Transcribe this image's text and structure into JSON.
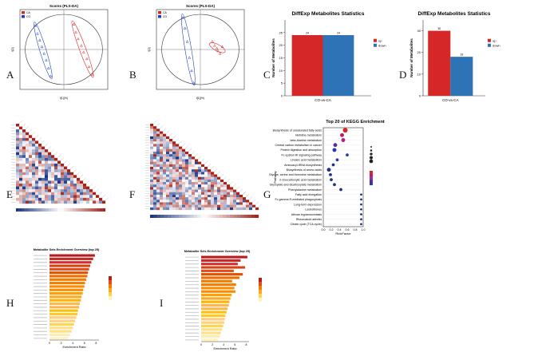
{
  "panel_labels": [
    "A",
    "B",
    "C",
    "D",
    "E",
    "F",
    "G",
    "H",
    "I"
  ],
  "chart_data": [
    {
      "id": "A",
      "type": "scatter",
      "title": "Scores (PLS-DA)",
      "ylabel": "t[2]",
      "xlabel": "t[1](%)",
      "legend": [
        "CA",
        "CO"
      ],
      "colors": {
        "CA": "#d62728",
        "CO": "#1f3fbf"
      },
      "series": [
        {
          "name": "CA",
          "x": [
            0.9,
            1.1,
            1.3,
            1.6,
            1.8,
            2.1,
            2.3,
            2.6
          ],
          "y": [
            1.9,
            1.3,
            0.8,
            0.3,
            -0.2,
            -0.7,
            -1.3,
            -1.9
          ]
        },
        {
          "name": "CO",
          "x": [
            -2.6,
            -2.4,
            -2.2,
            -2.0,
            -1.8,
            -1.6,
            -1.4,
            -1.2
          ],
          "y": [
            1.8,
            1.2,
            0.7,
            0.2,
            -0.3,
            -0.8,
            -1.4,
            -2.0
          ]
        }
      ],
      "xlim": [
        -4,
        4
      ],
      "ylim": [
        -3,
        3
      ]
    },
    {
      "id": "B",
      "type": "scatter",
      "title": "Scores (PLS-DA)",
      "ylabel": "t[2]",
      "xlabel": "t[1](%)",
      "legend": [
        "CA",
        "CO"
      ],
      "colors": {
        "CA": "#d62728",
        "CO": "#1f3fbf"
      },
      "series": [
        {
          "name": "CA",
          "x": [
            1.1,
            1.3,
            1.5,
            1.6,
            1.8,
            2.0
          ],
          "y": [
            0.6,
            0.3,
            0.1,
            -0.1,
            -0.3,
            0.2
          ]
        },
        {
          "name": "CO",
          "x": [
            -1.6,
            -1.4,
            -1.2,
            -1.0,
            -0.8,
            -0.6
          ],
          "y": [
            2.4,
            1.6,
            0.6,
            -0.6,
            -1.6,
            -2.5
          ]
        }
      ],
      "xlim": [
        -4,
        4
      ],
      "ylim": [
        -3,
        3
      ]
    },
    {
      "id": "C",
      "type": "bar",
      "title": "DiffExp Metabolites Statistics",
      "categories": [
        "CO-vs-CA"
      ],
      "series": [
        {
          "name": "up",
          "values": [
            24
          ]
        },
        {
          "name": "down",
          "values": [
            24
          ]
        }
      ],
      "ylabel": "Number of Metabolites",
      "ylim": [
        0,
        30
      ],
      "yticks": [
        0,
        5,
        10,
        15,
        20,
        25
      ]
    },
    {
      "id": "D",
      "type": "bar",
      "title": "DiffExp Metabolites Statistics",
      "categories": [
        "CO-vs-CA"
      ],
      "series": [
        {
          "name": "up",
          "values": [
            30
          ]
        },
        {
          "name": "down",
          "values": [
            18
          ]
        }
      ],
      "ylabel": "Number of Metabolites",
      "ylim": [
        0,
        35
      ],
      "yticks": [
        0,
        10,
        20,
        30
      ]
    },
    {
      "id": "E",
      "type": "heatmap",
      "shape": "lower-triangle",
      "size": 28
    },
    {
      "id": "F",
      "type": "heatmap",
      "shape": "lower-triangle",
      "size": 34
    },
    {
      "id": "G",
      "type": "scatter",
      "title": "Top 20 of KEGG Enrichment",
      "xlabel": "RichFactor",
      "ylabel": "Pathway",
      "categories": [
        "Biosynthesis of unsaturated fatty acids",
        "Histidine metabolism",
        "beta-Alanine metabolism",
        "Central carbon metabolism in cancer",
        "Protein digestion and absorption",
        "Fc epsilon RI signaling pathway",
        "Linoleic acid metabolism",
        "Aminoacyl-tRNA biosynthesis",
        "Biosynthesis of amino acids",
        "Glycine, serine and threonine metabolism",
        "2-Oxocarboxylic acid metabolism",
        "Glyoxylate and dicarboxylate metabolism",
        "Phenylalanine metabolism",
        "Fatty acid elongation",
        "Fc gamma R-mediated phagocytosis",
        "Long-term depression",
        "Leukotrienes",
        "African trypanosomiasis",
        "Rheumatoid arthritis",
        "Citrate cycle (TCA cycle)"
      ],
      "x": [
        0.55,
        0.47,
        0.5,
        0.3,
        0.28,
        0.6,
        0.35,
        0.25,
        0.14,
        0.18,
        0.2,
        0.28,
        0.44,
        0.95,
        0.95,
        0.95,
        0.95,
        0.95,
        0.95,
        0.95
      ],
      "sizes": [
        4,
        3,
        3,
        3,
        3,
        2,
        2,
        2,
        3,
        2,
        2,
        2,
        2,
        1,
        1,
        1,
        1,
        1,
        1,
        1
      ],
      "pvalue_colors": [
        "#d62728",
        "#c2185b",
        "#b71c8a",
        "#5b2a9e",
        "#2a3bb0",
        "#2a3bb0",
        "#2a3bb0",
        "#23308f",
        "#23308f",
        "#23308f",
        "#23308f",
        "#23308f",
        "#23308f",
        "#1f2a80",
        "#1f2a80",
        "#1f2a80",
        "#1f2a80",
        "#1f2a80",
        "#1f2a80",
        "#1f2a80"
      ],
      "xlim": [
        0,
        1
      ],
      "xticks": [
        "0.0",
        "0.2",
        "0.4",
        "0.6",
        "0.8",
        "1.0"
      ]
    },
    {
      "id": "H",
      "type": "bar",
      "orientation": "horizontal",
      "title": "Metabolite Sets Enrichment Overview (top 25)",
      "xlabel": "Enrichment Ratio",
      "values": [
        7.8,
        7.5,
        7.2,
        7.0,
        6.8,
        6.6,
        6.5,
        6.3,
        6.1,
        6.0,
        5.8,
        5.7,
        5.5,
        5.4,
        5.2,
        5.1,
        4.9,
        4.8,
        4.6,
        4.4,
        4.2,
        4.0,
        3.8,
        3.5,
        3.2
      ],
      "colors": [
        "#b71c1c",
        "#c62828",
        "#d32f2f",
        "#d84315",
        "#e64a19",
        "#e65100",
        "#ef6c00",
        "#f57c00",
        "#f57c00",
        "#fb8c00",
        "#fb8c00",
        "#ffa000",
        "#ffa726",
        "#ffb300",
        "#ffb74d",
        "#ffb74d",
        "#ffc107",
        "#ffca28",
        "#ffcc80",
        "#ffd180",
        "#ffd54f",
        "#ffe082",
        "#ffe082",
        "#ffecb3",
        "#fff3c4"
      ],
      "xticks": [
        "0",
        "2",
        "4",
        "6",
        "8"
      ]
    },
    {
      "id": "I",
      "type": "bar",
      "orientation": "horizontal",
      "title": "Metabolite Sets Enrichment Overview (top 25)",
      "xlabel": "Enrichment Ratio",
      "values": [
        8.2,
        7.0,
        6.5,
        7.8,
        5.8,
        7.4,
        6.8,
        5.5,
        6.2,
        5.9,
        6.1,
        5.4,
        5.2,
        5.0,
        4.9,
        4.7,
        4.5,
        4.3,
        4.2,
        4.1,
        3.9,
        3.7,
        3.5,
        3.3,
        3.0
      ],
      "colors": [
        "#b71c1c",
        "#c62828",
        "#d32f2f",
        "#d84315",
        "#e64a19",
        "#e65100",
        "#ef6c00",
        "#f57c00",
        "#f57c00",
        "#fb8c00",
        "#fb8c00",
        "#ffa000",
        "#ffa726",
        "#ffb300",
        "#ffb74d",
        "#ffb74d",
        "#ffc107",
        "#ffca28",
        "#ffcc80",
        "#ffd180",
        "#ffd54f",
        "#ffe082",
        "#ffe082",
        "#ffecb3",
        "#fff3c4"
      ],
      "xticks": [
        "0",
        "2",
        "4",
        "6",
        "8"
      ]
    }
  ]
}
